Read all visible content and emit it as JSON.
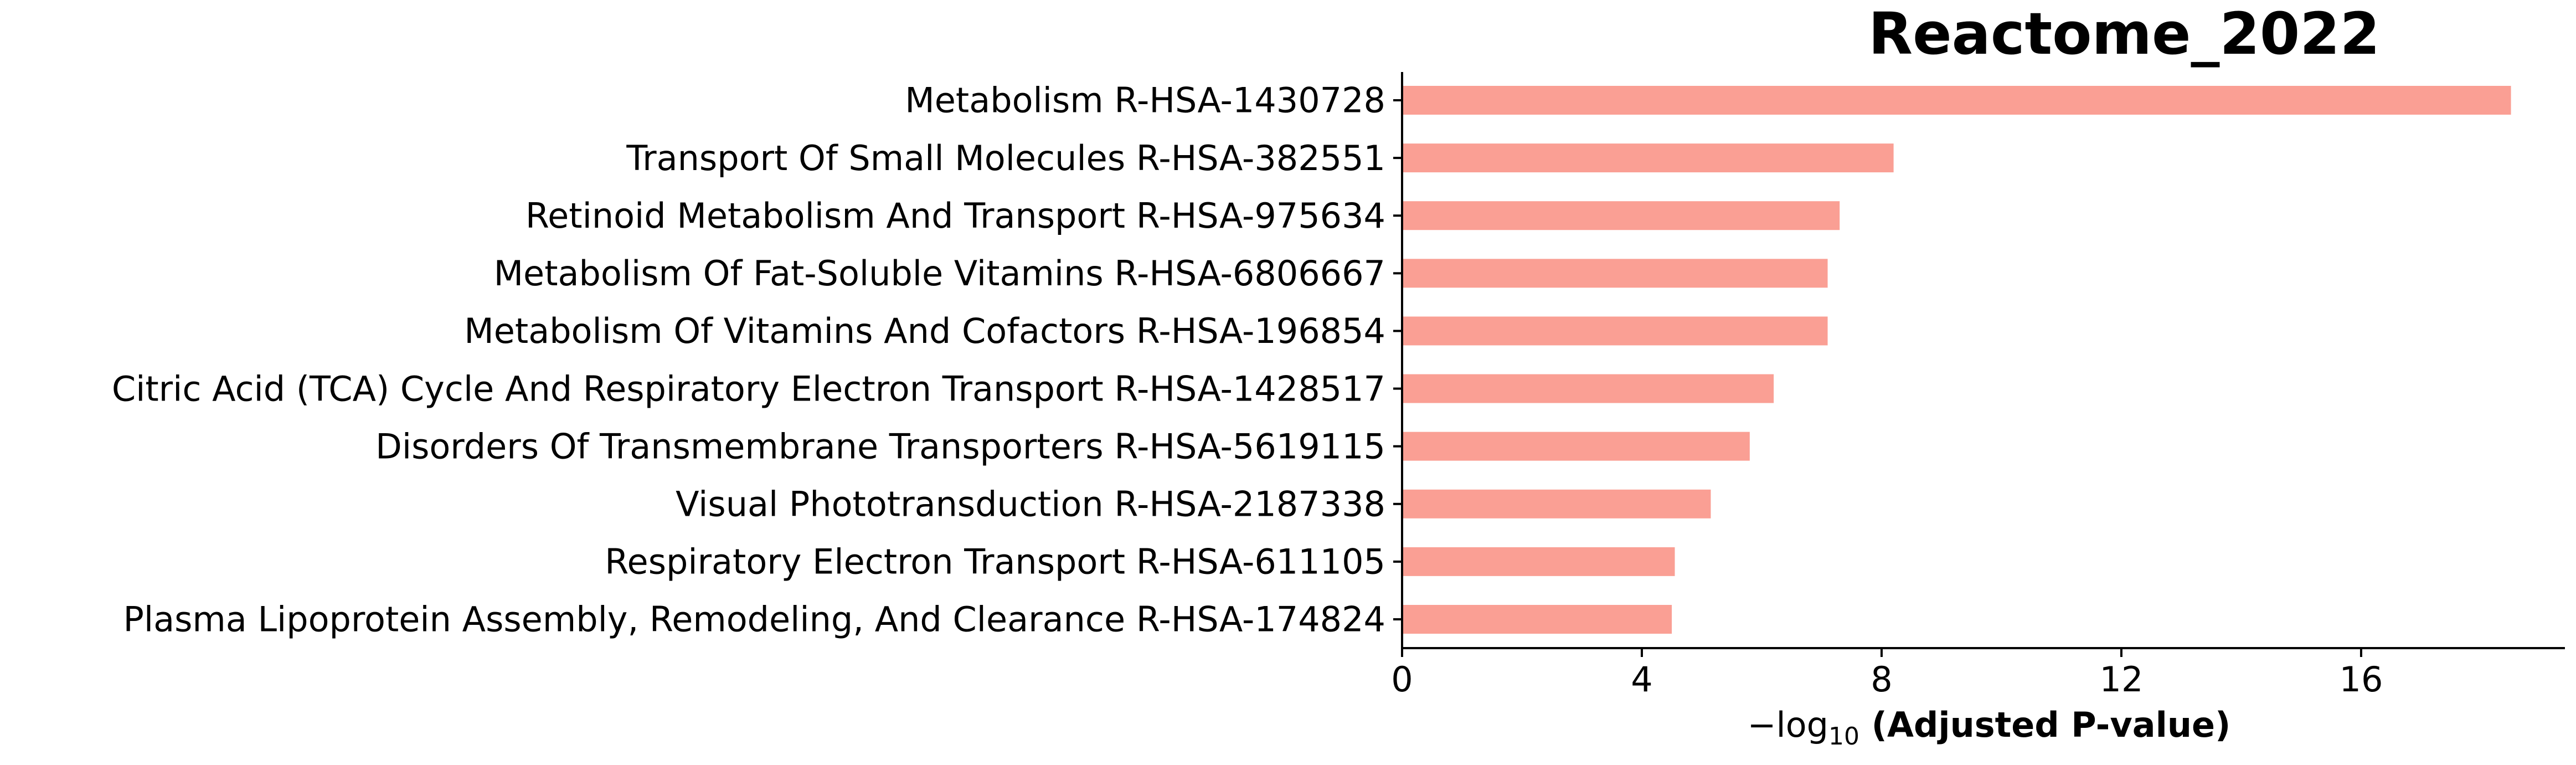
{
  "chart_data": {
    "type": "bar",
    "orientation": "horizontal",
    "title": "Reactome_2022",
    "xlabel": {
      "prefix": "−log",
      "subscript": "10",
      "bold": " (Adjusted P-value)"
    },
    "ylabel": "",
    "xlim": [
      0,
      19.4
    ],
    "xticks": [
      0,
      4,
      8,
      12,
      16
    ],
    "xtick_labels": [
      "0",
      "4",
      "8",
      "12",
      "16"
    ],
    "grid": false,
    "legend": null,
    "bar_color": "#fa9f94",
    "categories": [
      "Metabolism R-HSA-1430728",
      "Transport Of Small Molecules R-HSA-382551",
      "Retinoid Metabolism And Transport R-HSA-975634",
      "Metabolism Of Fat-Soluble Vitamins R-HSA-6806667",
      "Metabolism Of Vitamins And Cofactors R-HSA-196854",
      "Citric Acid (TCA) Cycle And Respiratory Electron Transport R-HSA-1428517",
      "Disorders Of Transmembrane Transporters R-HSA-5619115",
      "Visual Phototransduction R-HSA-2187338",
      "Respiratory Electron Transport R-HSA-611105",
      "Plasma Lipoprotein Assembly, Remodeling, And Clearance R-HSA-174824"
    ],
    "values": [
      18.5,
      8.2,
      7.3,
      7.1,
      7.1,
      6.2,
      5.8,
      5.15,
      4.55,
      4.5
    ]
  }
}
